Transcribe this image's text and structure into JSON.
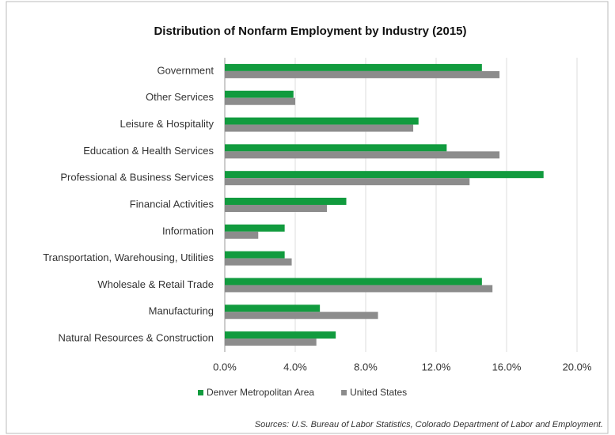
{
  "chart_data": {
    "type": "barh",
    "title": "Distribution of Nonfarm Employment by Industry (2015)",
    "categories": [
      "Government",
      "Other Services",
      "Leisure & Hospitality",
      "Education & Health Services",
      "Professional & Business Services",
      "Financial Activities",
      "Information",
      "Transportation, Warehousing, Utilities",
      "Wholesale & Retail Trade",
      "Manufacturing",
      "Natural Resources & Construction"
    ],
    "series": [
      {
        "name": "Denver Metropolitan Area",
        "color": "#119b3e",
        "values": [
          14.6,
          3.9,
          11.0,
          12.6,
          18.1,
          6.9,
          3.4,
          3.4,
          14.6,
          5.4,
          6.3
        ]
      },
      {
        "name": "United States",
        "color": "#8c8c8c",
        "values": [
          15.6,
          4.0,
          10.7,
          15.6,
          13.9,
          5.8,
          1.9,
          3.8,
          15.2,
          8.7,
          5.2
        ]
      }
    ],
    "xlim": [
      0,
      20
    ],
    "xticks": [
      {
        "value": 0,
        "label": "0.0%"
      },
      {
        "value": 4,
        "label": "4.0%"
      },
      {
        "value": 8,
        "label": "8.0%"
      },
      {
        "value": 12,
        "label": "12.0%"
      },
      {
        "value": 16,
        "label": "16.0%"
      },
      {
        "value": 20,
        "label": "20.0%"
      }
    ],
    "grid": true,
    "legend": "bottom",
    "source": "Sources: U.S. Bureau of Labor Statistics, Colorado Department of Labor and Employment."
  }
}
